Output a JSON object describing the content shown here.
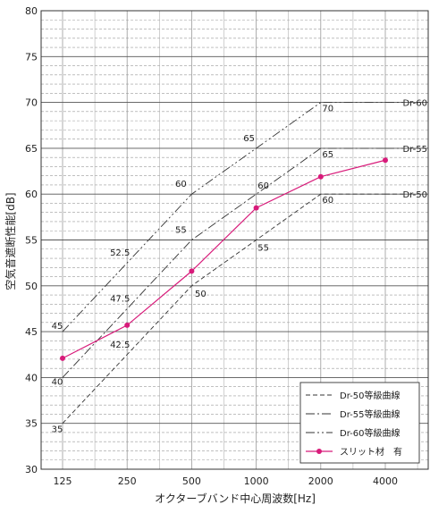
{
  "chart_data": {
    "type": "line",
    "xlabel": "オクターブバンド中心周波数[Hz]",
    "ylabel": "空気音遮断性能[dB]",
    "categories": [
      "125",
      "250",
      "500",
      "1000",
      "2000",
      "4000"
    ],
    "ylim": [
      30,
      80
    ],
    "yticks": [
      30,
      35,
      40,
      45,
      50,
      55,
      60,
      65,
      70,
      75,
      80
    ],
    "grid": true,
    "legend_position": "bottom-right",
    "series": [
      {
        "name": "Dr-50等級曲線",
        "style": "dashed",
        "color": "#333333",
        "values": [
          35,
          42.5,
          50,
          55,
          60,
          60
        ],
        "point_labels": [
          "35",
          "42.5",
          "50",
          "55",
          "60",
          ""
        ],
        "end_label": "Dr-50"
      },
      {
        "name": "Dr-55等級曲線",
        "style": "dashdot",
        "color": "#333333",
        "values": [
          40,
          47.5,
          55,
          60,
          65,
          65
        ],
        "point_labels": [
          "40",
          "47.5",
          "55",
          "60",
          "65",
          ""
        ],
        "end_label": "Dr-55"
      },
      {
        "name": "Dr-60等級曲線",
        "style": "dashdotdot",
        "color": "#333333",
        "values": [
          45,
          52.5,
          60,
          65,
          70,
          70
        ],
        "point_labels": [
          "45",
          "52.5",
          "60",
          "65",
          "70",
          ""
        ],
        "end_label": "Dr-60"
      },
      {
        "name": "スリット材　有",
        "style": "solid-marker",
        "color": "#d81b7a",
        "values": [
          42.1,
          45.7,
          51.6,
          58.5,
          61.9,
          63.7
        ]
      }
    ]
  }
}
